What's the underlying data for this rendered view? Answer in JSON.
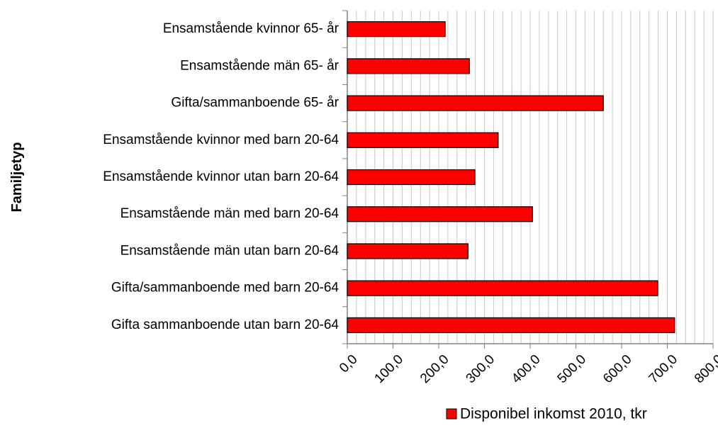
{
  "chart_data": {
    "type": "barh",
    "ylabel": "Familjetyp",
    "categories": [
      "Ensamstående kvinnor 65- år",
      "Ensamstående män 65- år",
      "Gifta/sammanboende 65- år",
      "Ensamstående kvinnor med barn 20-64",
      "Ensamstående kvinnor utan barn 20-64",
      "Ensamstående män med barn 20-64",
      "Ensamstående män utan barn 20-64",
      "Gifta/sammanboende med barn 20-64",
      "Gifta sammanboende utan barn 20-64"
    ],
    "series": [
      {
        "name": "Disponibel inkomst 2010, tkr",
        "color": "#ff0000",
        "values": [
          214,
          267,
          560,
          330,
          279,
          405,
          264,
          679,
          716
        ]
      }
    ],
    "xlim": [
      0,
      800
    ],
    "xticks": [
      {
        "value": 0,
        "label": "0,0"
      },
      {
        "value": 100,
        "label": "100,0"
      },
      {
        "value": 200,
        "label": "200,0"
      },
      {
        "value": 300,
        "label": "300,0"
      },
      {
        "value": 400,
        "label": "400,0"
      },
      {
        "value": 500,
        "label": "500,0"
      },
      {
        "value": 600,
        "label": "600,0"
      },
      {
        "value": 700,
        "label": "700,0"
      },
      {
        "value": 800,
        "label": "800,0"
      }
    ],
    "xgrid": [
      20,
      40,
      60,
      80,
      100,
      120,
      140,
      160,
      180,
      200,
      220,
      240,
      260,
      280,
      300,
      320,
      340,
      360,
      380,
      400,
      420,
      440,
      460,
      480,
      500,
      520,
      540,
      560,
      580,
      600,
      620,
      640,
      660,
      680,
      700,
      720,
      740,
      760,
      780,
      800
    ],
    "grid": true,
    "legend": "bottom-right"
  }
}
